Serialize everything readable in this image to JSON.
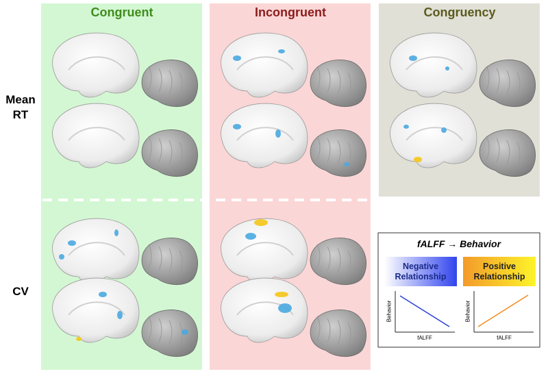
{
  "columns": [
    "Congruent",
    "Incongruent",
    "Congruency"
  ],
  "rows": [
    "Mean RT",
    "CV"
  ],
  "legend": {
    "title": "fALFF → Behavior",
    "negative": "Negative Relationship",
    "positive": "Positive Relationship",
    "plots": [
      {
        "y_label": "Behavior",
        "x_label": "fALFF"
      },
      {
        "y_label": "Behavior",
        "x_label": "fALFF"
      }
    ]
  }
}
